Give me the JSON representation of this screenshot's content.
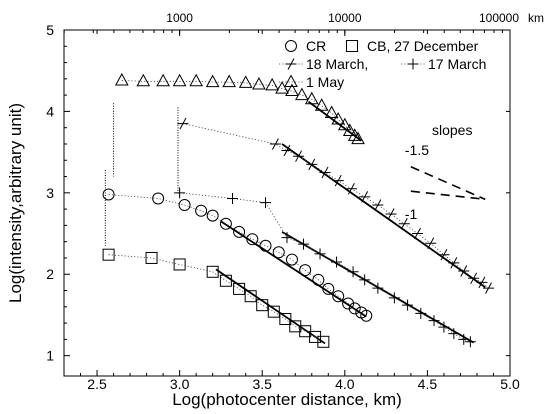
{
  "chart_data": {
    "type": "scatter",
    "xlabel": "Log(photocenter distance, km)",
    "ylabel": "Log(intensity,arbitrary unit)",
    "xlim": [
      2.3,
      5.0
    ],
    "ylim": [
      0.75,
      5.0
    ],
    "x_ticks": [
      "2.5",
      "3.0",
      "3.5",
      "4.0",
      "4.5",
      "5.0"
    ],
    "y_ticks": [
      "1",
      "2",
      "3",
      "4",
      "5"
    ],
    "top_axis": {
      "ticks": [
        "1000",
        "10000",
        "100000"
      ],
      "unit": "km"
    },
    "grid": false,
    "legend": {
      "items": [
        "CR",
        "CB, 27 December",
        "18 March,",
        "17 March",
        "1 May"
      ],
      "placement": "top-right"
    },
    "series": [
      {
        "name": "1 May",
        "marker": "triangle",
        "points": [
          [
            2.65,
            4.38
          ],
          [
            2.78,
            4.37
          ],
          [
            2.9,
            4.37
          ],
          [
            3.0,
            4.37
          ],
          [
            3.1,
            4.37
          ],
          [
            3.2,
            4.36
          ],
          [
            3.3,
            4.36
          ],
          [
            3.4,
            4.35
          ],
          [
            3.48,
            4.33
          ],
          [
            3.56,
            4.32
          ],
          [
            3.62,
            4.28
          ],
          [
            3.68,
            4.25
          ],
          [
            3.74,
            4.2
          ],
          [
            3.8,
            4.15
          ],
          [
            3.86,
            4.07
          ],
          [
            3.92,
            3.98
          ],
          [
            3.96,
            3.9
          ],
          [
            4.0,
            3.83
          ],
          [
            4.03,
            3.76
          ],
          [
            4.06,
            3.7
          ],
          [
            4.08,
            3.66
          ]
        ],
        "fit_points": [
          [
            3.78,
            4.12
          ],
          [
            4.1,
            3.64
          ]
        ],
        "start_marker": [
          [
            2.6,
            4.1
          ],
          [
            2.6,
            3.2
          ]
        ]
      },
      {
        "name": "18 March,",
        "marker": "diagonal-cross",
        "points": [
          [
            3.02,
            3.85
          ],
          [
            3.58,
            3.6
          ],
          [
            3.65,
            3.52
          ],
          [
            3.72,
            3.45
          ],
          [
            3.8,
            3.35
          ],
          [
            3.88,
            3.25
          ],
          [
            3.96,
            3.15
          ],
          [
            4.04,
            3.05
          ],
          [
            4.12,
            2.95
          ],
          [
            4.2,
            2.85
          ],
          [
            4.28,
            2.74
          ],
          [
            4.36,
            2.62
          ],
          [
            4.44,
            2.5
          ],
          [
            4.52,
            2.38
          ],
          [
            4.6,
            2.24
          ],
          [
            4.66,
            2.14
          ],
          [
            4.72,
            2.04
          ],
          [
            4.78,
            1.95
          ],
          [
            4.83,
            1.9
          ],
          [
            4.87,
            1.83
          ]
        ],
        "fit_points": [
          [
            3.62,
            3.6
          ],
          [
            4.85,
            1.84
          ]
        ],
        "start_marker": [
          [
            2.99,
            4.05
          ],
          [
            2.99,
            2.98
          ]
        ]
      },
      {
        "name": "17 March",
        "marker": "plus",
        "points": [
          [
            3.0,
            3.0
          ],
          [
            3.32,
            2.93
          ],
          [
            3.52,
            2.88
          ],
          [
            3.65,
            2.45
          ],
          [
            3.75,
            2.37
          ],
          [
            3.85,
            2.25
          ],
          [
            3.95,
            2.15
          ],
          [
            4.05,
            2.03
          ],
          [
            4.12,
            1.93
          ],
          [
            4.2,
            1.83
          ],
          [
            4.3,
            1.71
          ],
          [
            4.38,
            1.62
          ],
          [
            4.46,
            1.52
          ],
          [
            4.54,
            1.43
          ],
          [
            4.6,
            1.35
          ],
          [
            4.66,
            1.27
          ],
          [
            4.72,
            1.2
          ],
          [
            4.76,
            1.17
          ]
        ],
        "fit_points": [
          [
            3.62,
            2.52
          ],
          [
            4.78,
            1.16
          ]
        ]
      },
      {
        "name": "CR",
        "marker": "circle",
        "points": [
          [
            2.57,
            2.98
          ],
          [
            2.87,
            2.93
          ],
          [
            3.03,
            2.85
          ],
          [
            3.13,
            2.78
          ],
          [
            3.2,
            2.72
          ],
          [
            3.28,
            2.62
          ],
          [
            3.36,
            2.52
          ],
          [
            3.44,
            2.43
          ],
          [
            3.52,
            2.35
          ],
          [
            3.6,
            2.27
          ],
          [
            3.68,
            2.18
          ],
          [
            3.76,
            2.05
          ],
          [
            3.84,
            1.93
          ],
          [
            3.9,
            1.82
          ],
          [
            3.96,
            1.73
          ],
          [
            4.02,
            1.64
          ],
          [
            4.06,
            1.58
          ],
          [
            4.1,
            1.53
          ],
          [
            4.13,
            1.49
          ]
        ],
        "fit_points": [
          [
            3.25,
            2.65
          ],
          [
            4.13,
            1.48
          ]
        ],
        "start_marker": [
          [
            2.55,
            3.28
          ],
          [
            2.55,
            2.35
          ]
        ]
      },
      {
        "name": "CB, 27 December",
        "marker": "square",
        "points": [
          [
            2.57,
            2.24
          ],
          [
            2.83,
            2.2
          ],
          [
            3.0,
            2.12
          ],
          [
            3.2,
            2.03
          ],
          [
            3.28,
            1.92
          ],
          [
            3.36,
            1.82
          ],
          [
            3.43,
            1.73
          ],
          [
            3.5,
            1.62
          ],
          [
            3.57,
            1.54
          ],
          [
            3.64,
            1.45
          ],
          [
            3.7,
            1.36
          ],
          [
            3.76,
            1.3
          ],
          [
            3.82,
            1.23
          ],
          [
            3.87,
            1.17
          ]
        ],
        "fit_points": [
          [
            3.22,
            2.06
          ],
          [
            3.88,
            1.15
          ]
        ]
      }
    ],
    "slopes": {
      "title": "slopes",
      "items": [
        {
          "label": "-1.5",
          "line": [
            [
              4.4,
              3.32
            ],
            [
              4.85,
              2.92
            ]
          ]
        },
        {
          "label": "-1",
          "line": [
            [
              4.4,
              3.02
            ],
            [
              4.85,
              2.92
            ]
          ]
        }
      ]
    }
  }
}
